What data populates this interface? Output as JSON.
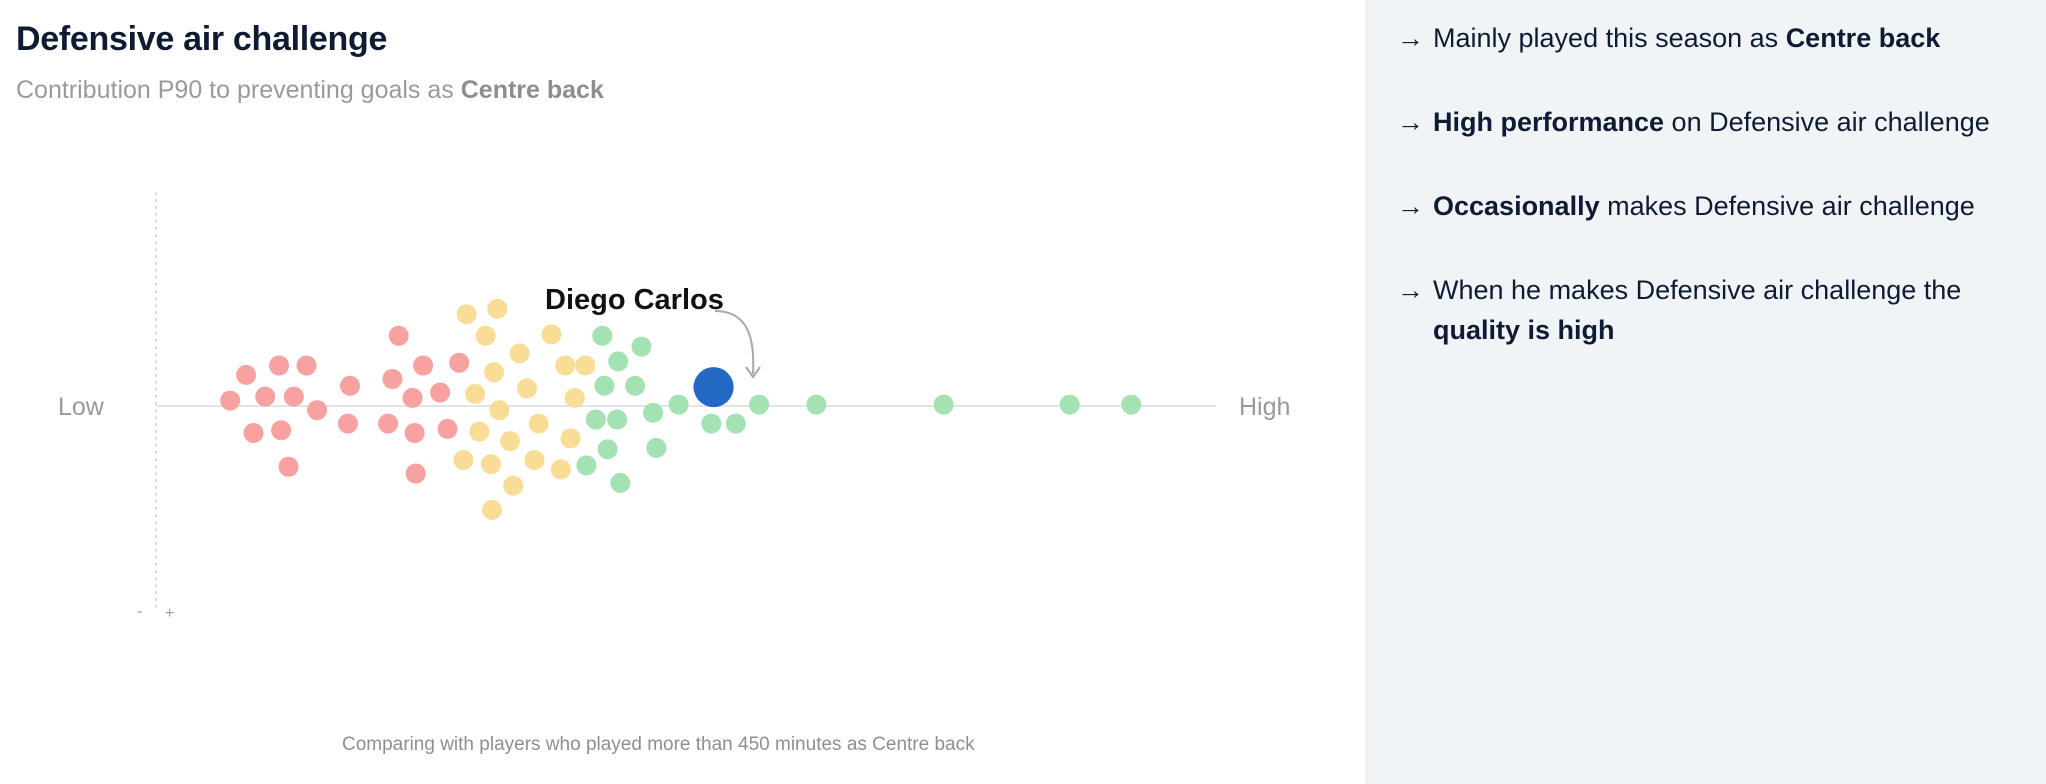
{
  "header": {
    "title": "Defensive air challenge",
    "subtitle_prefix": "Contribution P90 to preventing goals as",
    "subtitle_position": "Centre back"
  },
  "footnote": "Comparing with players who played more than 450 minutes as Centre back",
  "chart_data": {
    "type": "scatter",
    "subtype": "beeswarm",
    "x_low_label": "Low",
    "x_high_label": "High",
    "y_minus_label": "-",
    "y_plus_label": "+",
    "highlight_label": "Diego Carlos",
    "colors": {
      "low": "#f7a1a1",
      "mid": "#f9dc96",
      "high": "#a4e2b4",
      "highlight": "#2369c3",
      "axis": "#e4e4e4",
      "label": "#9a9a9a"
    },
    "points": [
      {
        "x": 7,
        "y": 0.04,
        "g": "low"
      },
      {
        "x": 8.5,
        "y": 0.23,
        "g": "low"
      },
      {
        "x": 9.2,
        "y": -0.2,
        "g": "low"
      },
      {
        "x": 10.3,
        "y": 0.07,
        "g": "low"
      },
      {
        "x": 11.6,
        "y": 0.3,
        "g": "low"
      },
      {
        "x": 11.8,
        "y": -0.18,
        "g": "low"
      },
      {
        "x": 12.5,
        "y": -0.45,
        "g": "low"
      },
      {
        "x": 13,
        "y": 0.07,
        "g": "low"
      },
      {
        "x": 14.2,
        "y": 0.3,
        "g": "low"
      },
      {
        "x": 15.2,
        "y": -0.03,
        "g": "low"
      },
      {
        "x": 18.1,
        "y": -0.13,
        "g": "low"
      },
      {
        "x": 18.3,
        "y": 0.15,
        "g": "low"
      },
      {
        "x": 21.9,
        "y": -0.13,
        "g": "low"
      },
      {
        "x": 22.3,
        "y": 0.2,
        "g": "low"
      },
      {
        "x": 22.9,
        "y": 0.52,
        "g": "low"
      },
      {
        "x": 24.2,
        "y": 0.06,
        "g": "low"
      },
      {
        "x": 24.4,
        "y": -0.2,
        "g": "low"
      },
      {
        "x": 24.5,
        "y": -0.5,
        "g": "low"
      },
      {
        "x": 25.2,
        "y": 0.3,
        "g": "low"
      },
      {
        "x": 26.8,
        "y": 0.1,
        "g": "low"
      },
      {
        "x": 27.5,
        "y": -0.17,
        "g": "low"
      },
      {
        "x": 28.6,
        "y": 0.32,
        "g": "low"
      },
      {
        "x": 29,
        "y": -0.4,
        "g": "mid"
      },
      {
        "x": 29.3,
        "y": 0.68,
        "g": "mid"
      },
      {
        "x": 30.1,
        "y": 0.09,
        "g": "mid"
      },
      {
        "x": 30.5,
        "y": -0.19,
        "g": "mid"
      },
      {
        "x": 31.1,
        "y": 0.52,
        "g": "mid"
      },
      {
        "x": 31.6,
        "y": -0.43,
        "g": "mid"
      },
      {
        "x": 31.7,
        "y": -0.77,
        "g": "mid"
      },
      {
        "x": 31.9,
        "y": 0.25,
        "g": "mid"
      },
      {
        "x": 32.2,
        "y": 0.72,
        "g": "mid"
      },
      {
        "x": 32.4,
        "y": -0.03,
        "g": "mid"
      },
      {
        "x": 33.4,
        "y": -0.26,
        "g": "mid"
      },
      {
        "x": 33.7,
        "y": -0.59,
        "g": "mid"
      },
      {
        "x": 34.3,
        "y": 0.39,
        "g": "mid"
      },
      {
        "x": 35,
        "y": 0.13,
        "g": "mid"
      },
      {
        "x": 35.7,
        "y": -0.4,
        "g": "mid"
      },
      {
        "x": 36.1,
        "y": -0.13,
        "g": "mid"
      },
      {
        "x": 37.3,
        "y": 0.53,
        "g": "mid"
      },
      {
        "x": 38.2,
        "y": -0.47,
        "g": "mid"
      },
      {
        "x": 38.6,
        "y": 0.3,
        "g": "mid"
      },
      {
        "x": 39.1,
        "y": -0.24,
        "g": "mid"
      },
      {
        "x": 39.5,
        "y": 0.06,
        "g": "mid"
      },
      {
        "x": 40.5,
        "y": 0.3,
        "g": "mid"
      },
      {
        "x": 40.6,
        "y": -0.44,
        "g": "high"
      },
      {
        "x": 41.5,
        "y": -0.1,
        "g": "high"
      },
      {
        "x": 42.1,
        "y": 0.52,
        "g": "high"
      },
      {
        "x": 42.3,
        "y": 0.15,
        "g": "high"
      },
      {
        "x": 42.6,
        "y": -0.32,
        "g": "high"
      },
      {
        "x": 43.6,
        "y": 0.33,
        "g": "high"
      },
      {
        "x": 43.5,
        "y": -0.1,
        "g": "high"
      },
      {
        "x": 43.8,
        "y": -0.57,
        "g": "high"
      },
      {
        "x": 45.2,
        "y": 0.15,
        "g": "high"
      },
      {
        "x": 45.8,
        "y": 0.44,
        "g": "high"
      },
      {
        "x": 46.9,
        "y": -0.05,
        "g": "high"
      },
      {
        "x": 47.2,
        "y": -0.31,
        "g": "high"
      },
      {
        "x": 49.3,
        "y": 0.01,
        "g": "high"
      },
      {
        "x": 51.6,
        "y": 0.14,
        "g": "high"
      },
      {
        "x": 52.4,
        "y": -0.13,
        "g": "high"
      },
      {
        "x": 54.7,
        "y": -0.13,
        "g": "high"
      },
      {
        "x": 56.9,
        "y": 0.01,
        "g": "high"
      },
      {
        "x": 62.3,
        "y": 0.01,
        "g": "high"
      },
      {
        "x": 74.3,
        "y": 0.01,
        "g": "high"
      },
      {
        "x": 86.2,
        "y": 0.01,
        "g": "high"
      },
      {
        "x": 92,
        "y": 0.01,
        "g": "high"
      }
    ],
    "highlight": {
      "x": 52.6,
      "y": 0.14
    }
  },
  "sidebar": {
    "insights": [
      {
        "pre": "Mainly played this season as ",
        "bold": "Centre back",
        "post": ""
      },
      {
        "pre": "",
        "bold": "High performance",
        "post": " on Defensive air challenge"
      },
      {
        "pre": "",
        "bold": "Occasionally",
        "post": " makes Defensive air challenge"
      },
      {
        "pre": "When he makes Defensive air challenge the ",
        "bold": "quality is high",
        "post": ""
      }
    ]
  }
}
